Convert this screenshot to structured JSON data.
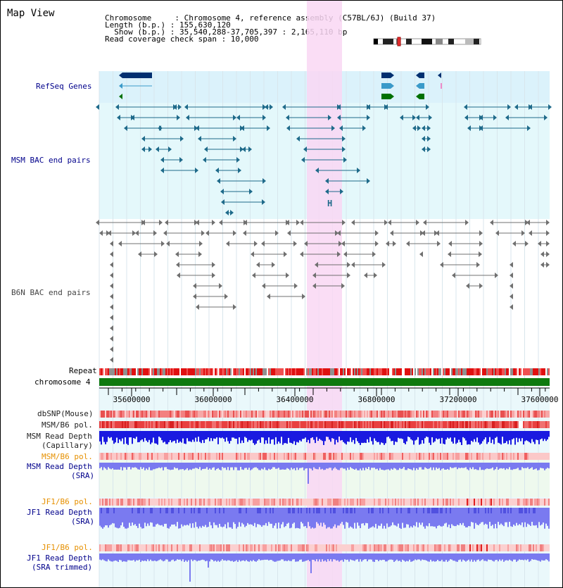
{
  "header": {
    "title": "Map View",
    "info_lines": [
      "Chromosome     : Chromosome 4, reference assembly (C57BL/6J) (Build 37)",
      "Length (b.p.) : 155,630,120",
      "  Show (b.p.) : 35,540,288-37,705,397 : 2,165,110 bp",
      "Read coverage check span : 10,000"
    ]
  },
  "tracks": {
    "refseq": "RefSeq Genes",
    "msm_bac": "MSM BAC end pairs",
    "b6n_bac": "B6N BAC end pairs",
    "repeat": "Repeat",
    "chromosome": "chromosome 4",
    "dbsnp": "dbSNP(Mouse)",
    "msm_b6_pol_1": "MSM/B6 pol.",
    "msm_depth_cap_1": "MSM Read Depth",
    "msm_depth_cap_2": "(Capillary)",
    "msm_b6_pol_2": "MSM/B6 pol.",
    "msm_depth_sra_1": "MSM Read Depth",
    "msm_depth_sra_2": "(SRA)",
    "jf1_b6_pol_1": "JF1/B6 pol.",
    "jf1_depth_sra_1": "JF1 Read Depth",
    "jf1_depth_sra_2": "(SRA)",
    "jf1_b6_pol_2": "JF1/B6 pol.",
    "jf1_depth_trim_1": "JF1 Read Depth",
    "jf1_depth_trim_2": "(SRA trimmed)"
  },
  "axis": {
    "ticks": [
      "35600000",
      "36000000",
      "36400000",
      "36800000",
      "37200000",
      "37600000"
    ]
  },
  "colors": {
    "highlight": "#f9d7f3",
    "refseq_bg": "#dbf2fb",
    "msm_bg": "#e4f8fb",
    "track_bg": "#eaf8fb",
    "gene_dark": "#003070",
    "gene_mid": "#3a9ac9",
    "gene_green": "#007000",
    "msm_pair": "#1e6a8a",
    "b6n_pair": "#707070",
    "chrom_green": "#0f7a0f",
    "depth_blue": "#1a1ae0",
    "depth_light": "#7a7af0",
    "label_blue": "#00008b",
    "label_orange": "#e69000"
  },
  "marker": {
    "text": "H"
  }
}
